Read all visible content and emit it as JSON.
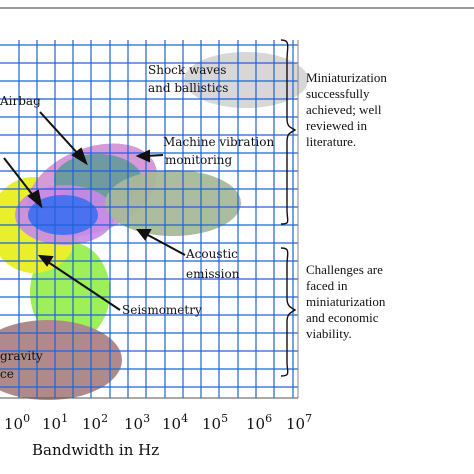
{
  "figure": {
    "xlabel": "Bandwidth in Hz",
    "x_ticks": [
      {
        "base": "10",
        "exp": "0"
      },
      {
        "base": "10",
        "exp": "1"
      },
      {
        "base": "10",
        "exp": "2"
      },
      {
        "base": "10",
        "exp": "3"
      },
      {
        "base": "10",
        "exp": "4"
      },
      {
        "base": "10",
        "exp": "5"
      },
      {
        "base": "10",
        "exp": "6"
      },
      {
        "base": "10",
        "exp": "7"
      }
    ]
  },
  "regions": [
    {
      "name": "Shock waves and ballistics",
      "lines": [
        "Shock waves",
        "and ballistics"
      ]
    },
    {
      "name": "Airbag",
      "lines": [
        "Airbag"
      ]
    },
    {
      "name": "Machine vibration monitoring",
      "lines": [
        "Machine  vibration",
        "monitoring"
      ]
    },
    {
      "name": "Acoustic emission",
      "lines": [
        "Acoustic",
        "emission"
      ]
    },
    {
      "name": "Seismometry",
      "lines": [
        "Seismometry"
      ]
    },
    {
      "name": "gravity",
      "lines": [
        "gravity",
        "ce"
      ]
    }
  ],
  "annotations": {
    "top": [
      "Miniaturization",
      "successfully",
      "achieved; well",
      "reviewed in",
      "literature."
    ],
    "bottom": [
      "Challenges are",
      "faced in",
      "miniaturization",
      "and economic",
      "viability."
    ]
  },
  "colors": {
    "grid": "#1f63d6",
    "shock": "#d8d6d6",
    "machine": "#d79ad9",
    "machine_inner": "#6f9aa0",
    "acoustic": "#a8b89a",
    "airbag_outer": "#c98ae6",
    "airbag_inner": "#4a72f0",
    "seismo": "#e9ef2a",
    "green": "#9ef05a",
    "gravity": "#b08a8a"
  }
}
